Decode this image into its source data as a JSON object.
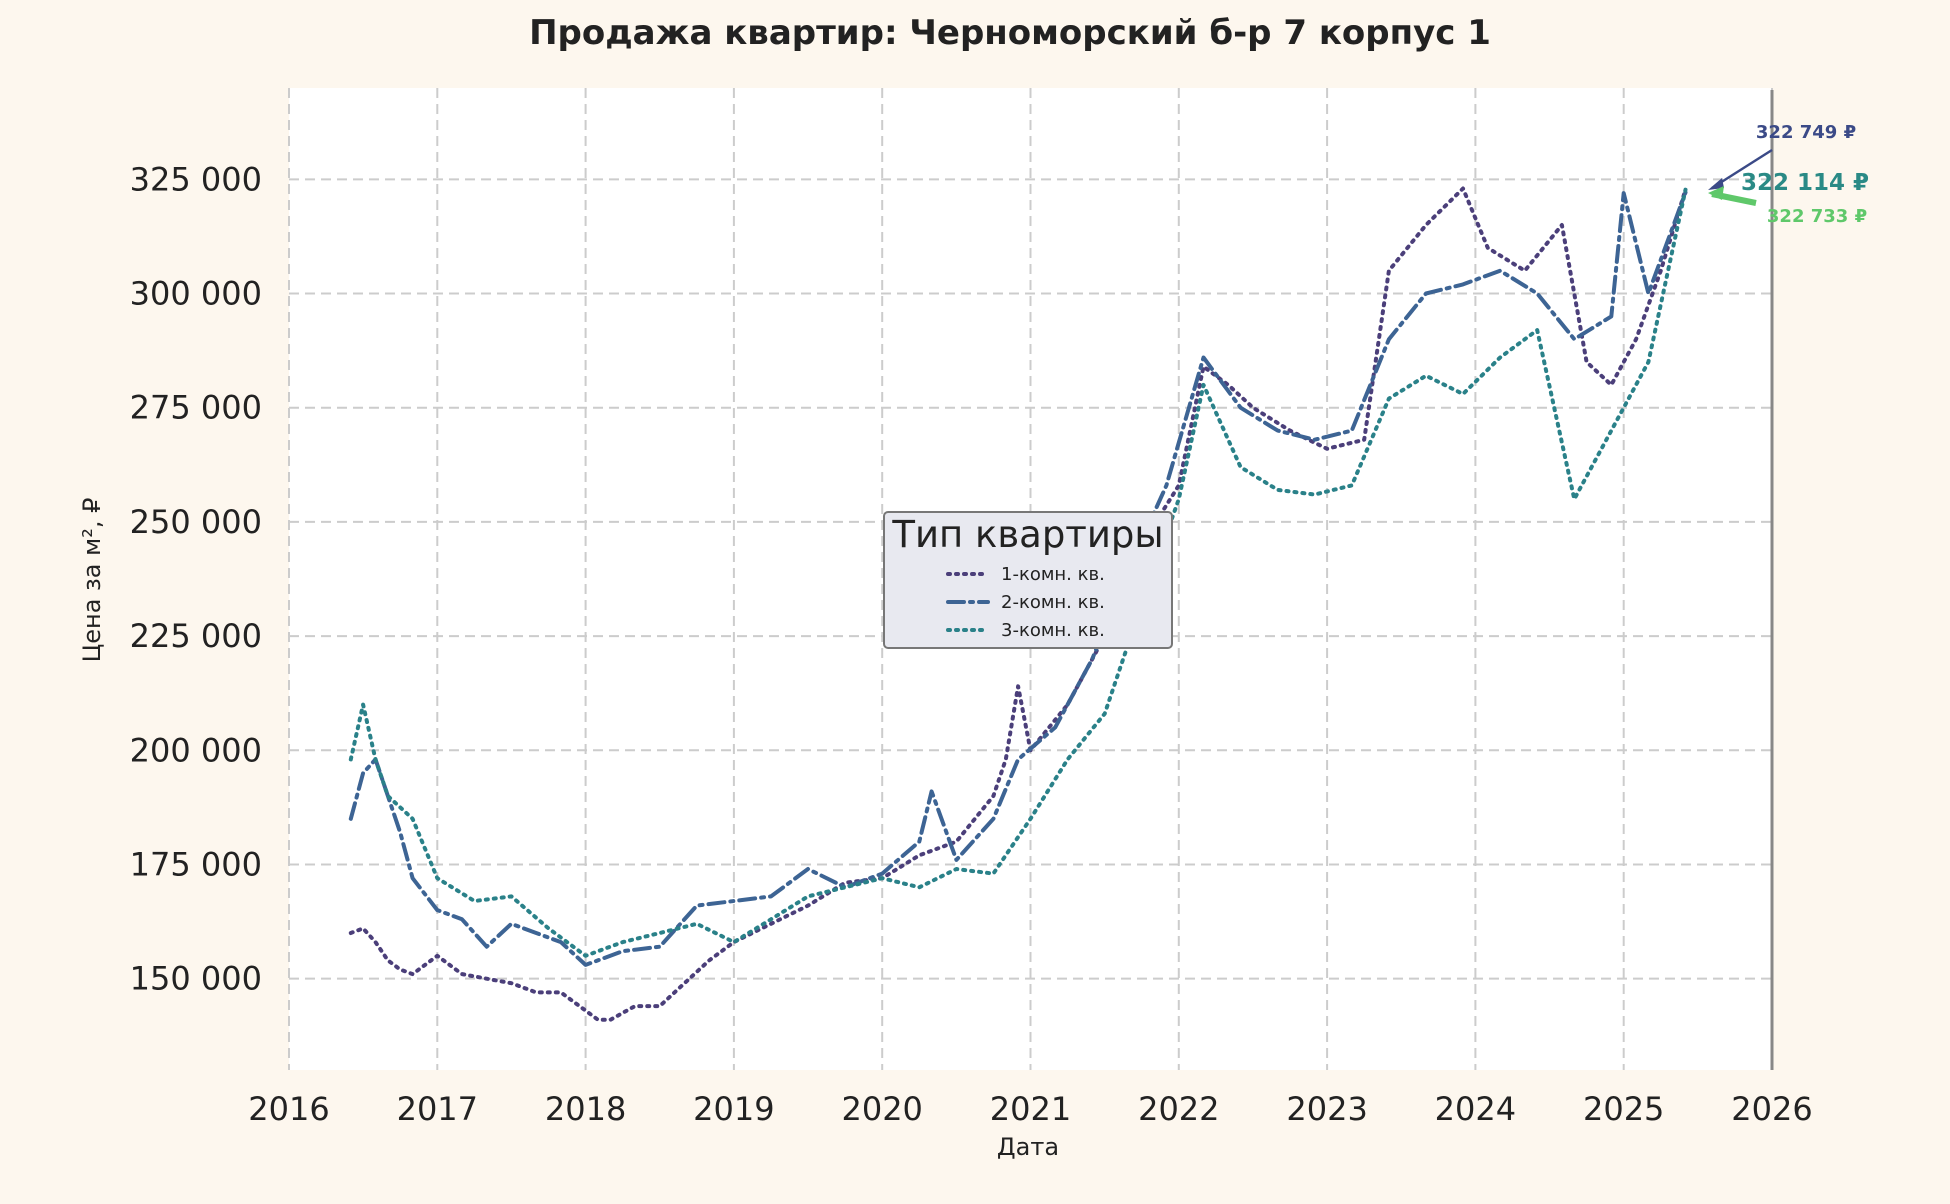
{
  "chart_data": {
    "type": "line",
    "title": "Продажа квартир: Черноморский б-р 7 корпус 1",
    "xlabel": "Дата",
    "ylabel": "Цена за м², ₽",
    "xlim": [
      "2016-01-01",
      "2026-01-01"
    ],
    "ylim": [
      130000,
      345000
    ],
    "x_ticks": [
      "2016",
      "2017",
      "2018",
      "2019",
      "2020",
      "2021",
      "2022",
      "2023",
      "2024",
      "2025",
      "2026"
    ],
    "y_ticks": [
      150000,
      175000,
      200000,
      225000,
      250000,
      275000,
      300000,
      325000
    ],
    "y_tick_labels": [
      "150 000",
      "175 000",
      "200 000",
      "225 000",
      "250 000",
      "275 000",
      "300 000",
      "325 000"
    ],
    "grid": true,
    "legend": {
      "title": "Тип квартиры",
      "placement": "center",
      "items": [
        "1-комн. кв.",
        "2-комн. кв.",
        "3-комн. кв."
      ]
    },
    "vertical_line": "2026-01-01",
    "series": [
      {
        "name": "1-комн. кв.",
        "color": "#4b3f7a",
        "style": "dotted",
        "points": [
          [
            "2016-06",
            160000
          ],
          [
            "2016-07",
            161000
          ],
          [
            "2016-08",
            158000
          ],
          [
            "2016-09",
            154000
          ],
          [
            "2016-10",
            152000
          ],
          [
            "2016-11",
            151000
          ],
          [
            "2017-01",
            155000
          ],
          [
            "2017-03",
            151000
          ],
          [
            "2017-05",
            150000
          ],
          [
            "2017-07",
            149000
          ],
          [
            "2017-09",
            147000
          ],
          [
            "2017-11",
            147000
          ],
          [
            "2018-01",
            143000
          ],
          [
            "2018-02",
            141000
          ],
          [
            "2018-03",
            141000
          ],
          [
            "2018-05",
            144000
          ],
          [
            "2018-07",
            144000
          ],
          [
            "2018-09",
            149000
          ],
          [
            "2018-11",
            154000
          ],
          [
            "2019-01",
            158000
          ],
          [
            "2019-04",
            162000
          ],
          [
            "2019-07",
            166000
          ],
          [
            "2019-10",
            171000
          ],
          [
            "2020-01",
            172000
          ],
          [
            "2020-04",
            177000
          ],
          [
            "2020-07",
            180000
          ],
          [
            "2020-10",
            190000
          ],
          [
            "2020-11",
            198000
          ],
          [
            "2020-12",
            214000
          ],
          [
            "2021-01",
            200000
          ],
          [
            "2021-04",
            210000
          ],
          [
            "2021-07",
            225000
          ],
          [
            "2021-10",
            245000
          ],
          [
            "2022-01",
            258000
          ],
          [
            "2022-03",
            284000
          ],
          [
            "2022-05",
            280000
          ],
          [
            "2022-07",
            275000
          ],
          [
            "2022-10",
            270000
          ],
          [
            "2023-01",
            266000
          ],
          [
            "2023-04",
            268000
          ],
          [
            "2023-06",
            305000
          ],
          [
            "2023-09",
            315000
          ],
          [
            "2023-12",
            323000
          ],
          [
            "2024-02",
            310000
          ],
          [
            "2024-05",
            305000
          ],
          [
            "2024-08",
            315000
          ],
          [
            "2024-10",
            285000
          ],
          [
            "2024-12",
            280000
          ],
          [
            "2025-02",
            290000
          ],
          [
            "2025-04",
            305000
          ],
          [
            "2025-06",
            322749
          ]
        ]
      },
      {
        "name": "2-комн. кв.",
        "color": "#3d6494",
        "style": "dashdot",
        "points": [
          [
            "2016-06",
            185000
          ],
          [
            "2016-07",
            195000
          ],
          [
            "2016-08",
            198000
          ],
          [
            "2016-09",
            190000
          ],
          [
            "2016-10",
            182000
          ],
          [
            "2016-11",
            172000
          ],
          [
            "2017-01",
            165000
          ],
          [
            "2017-03",
            163000
          ],
          [
            "2017-05",
            157000
          ],
          [
            "2017-07",
            162000
          ],
          [
            "2017-09",
            160000
          ],
          [
            "2017-11",
            158000
          ],
          [
            "2018-01",
            153000
          ],
          [
            "2018-04",
            156000
          ],
          [
            "2018-07",
            157000
          ],
          [
            "2018-10",
            166000
          ],
          [
            "2019-01",
            167000
          ],
          [
            "2019-04",
            168000
          ],
          [
            "2019-07",
            174000
          ],
          [
            "2019-10",
            170000
          ],
          [
            "2020-01",
            173000
          ],
          [
            "2020-04",
            180000
          ],
          [
            "2020-05",
            191000
          ],
          [
            "2020-07",
            176000
          ],
          [
            "2020-10",
            185000
          ],
          [
            "2020-12",
            198000
          ],
          [
            "2021-03",
            205000
          ],
          [
            "2021-06",
            220000
          ],
          [
            "2021-09",
            240000
          ],
          [
            "2021-12",
            258000
          ],
          [
            "2022-03",
            286000
          ],
          [
            "2022-06",
            275000
          ],
          [
            "2022-09",
            270000
          ],
          [
            "2022-12",
            268000
          ],
          [
            "2023-03",
            270000
          ],
          [
            "2023-06",
            290000
          ],
          [
            "2023-09",
            300000
          ],
          [
            "2023-12",
            302000
          ],
          [
            "2024-03",
            305000
          ],
          [
            "2024-06",
            300000
          ],
          [
            "2024-09",
            290000
          ],
          [
            "2024-12",
            295000
          ],
          [
            "2025-01",
            322000
          ],
          [
            "2025-03",
            300000
          ],
          [
            "2025-06",
            322114
          ]
        ]
      },
      {
        "name": "3-комн. кв.",
        "color": "#2a8189",
        "style": "dotted",
        "points": [
          [
            "2016-06",
            198000
          ],
          [
            "2016-07",
            210000
          ],
          [
            "2016-08",
            198000
          ],
          [
            "2016-09",
            190000
          ],
          [
            "2016-11",
            185000
          ],
          [
            "2017-01",
            172000
          ],
          [
            "2017-04",
            167000
          ],
          [
            "2017-07",
            168000
          ],
          [
            "2017-10",
            161000
          ],
          [
            "2018-01",
            155000
          ],
          [
            "2018-04",
            158000
          ],
          [
            "2018-07",
            160000
          ],
          [
            "2018-10",
            162000
          ],
          [
            "2019-01",
            158000
          ],
          [
            "2019-04",
            163000
          ],
          [
            "2019-07",
            168000
          ],
          [
            "2019-10",
            170000
          ],
          [
            "2020-01",
            172000
          ],
          [
            "2020-04",
            170000
          ],
          [
            "2020-07",
            174000
          ],
          [
            "2020-10",
            173000
          ],
          [
            "2021-01",
            185000
          ],
          [
            "2021-04",
            198000
          ],
          [
            "2021-07",
            208000
          ],
          [
            "2021-10",
            232000
          ],
          [
            "2022-01",
            255000
          ],
          [
            "2022-03",
            280000
          ],
          [
            "2022-06",
            262000
          ],
          [
            "2022-09",
            257000
          ],
          [
            "2022-12",
            256000
          ],
          [
            "2023-03",
            258000
          ],
          [
            "2023-06",
            277000
          ],
          [
            "2023-09",
            282000
          ],
          [
            "2023-12",
            278000
          ],
          [
            "2024-03",
            286000
          ],
          [
            "2024-06",
            292000
          ],
          [
            "2024-09",
            255000
          ],
          [
            "2024-12",
            270000
          ],
          [
            "2025-03",
            285000
          ],
          [
            "2025-06",
            322733
          ]
        ]
      }
    ],
    "annotations": [
      {
        "text": "322 749 ₽",
        "series": "1-комн. кв.",
        "color": "#3b4a87"
      },
      {
        "text": "322 114 ₽",
        "series": "2-комн. кв.",
        "color": "#2a8a86"
      },
      {
        "text": "322 733 ₽",
        "series": "3-комн. кв.",
        "color": "#5fc86a"
      }
    ]
  }
}
